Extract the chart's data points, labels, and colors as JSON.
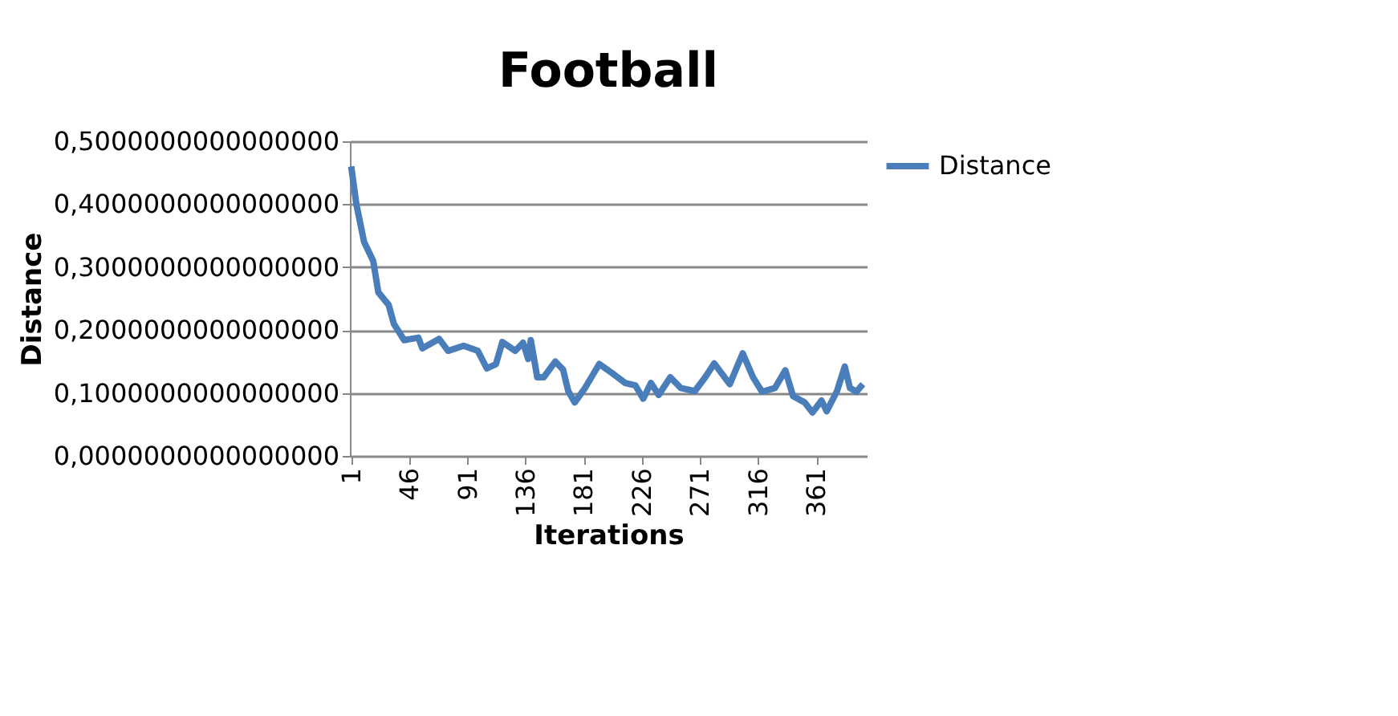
{
  "chart_data": {
    "type": "line",
    "title": "Football",
    "xlabel": "Iterations",
    "ylabel": "Distance",
    "xlim": [
      0,
      400
    ],
    "xticks": [
      1,
      46,
      91,
      136,
      181,
      226,
      271,
      316,
      361
    ],
    "ylim": [
      0,
      0.5
    ],
    "yticks": [
      {
        "value": 0,
        "label": "0,0000000000000000"
      },
      {
        "value": 0.1,
        "label": "0,1000000000000000"
      },
      {
        "value": 0.2,
        "label": "0,2000000000000000"
      },
      {
        "value": 0.3,
        "label": "0,3000000000000000"
      },
      {
        "value": 0.4,
        "label": "0,4000000000000000"
      },
      {
        "value": 0.5,
        "label": "0,5000000000000000"
      }
    ],
    "grid": "y",
    "legend": "right",
    "marker": "none",
    "line_style": "solid",
    "series": [
      {
        "name": "Distance",
        "color": "#4a7ebb",
        "x": [
          1,
          5,
          11,
          18,
          22,
          30,
          34,
          42,
          53,
          56,
          69,
          76,
          88,
          99,
          106,
          113,
          118,
          128,
          134,
          138,
          140,
          145,
          150,
          159,
          165,
          169,
          174,
          182,
          193,
          202,
          213,
          221,
          227,
          233,
          239,
          248,
          256,
          267,
          275,
          282,
          287,
          294,
          304,
          312,
          319,
          329,
          337,
          343,
          352,
          358,
          365,
          369,
          377,
          383,
          387,
          392,
          397
        ],
        "values": [
          0.46,
          0.4,
          0.34,
          0.31,
          0.26,
          0.24,
          0.21,
          0.184,
          0.188,
          0.171,
          0.186,
          0.167,
          0.175,
          0.167,
          0.139,
          0.146,
          0.181,
          0.167,
          0.18,
          0.154,
          0.184,
          0.125,
          0.125,
          0.15,
          0.137,
          0.103,
          0.085,
          0.108,
          0.146,
          0.133,
          0.116,
          0.112,
          0.091,
          0.116,
          0.097,
          0.125,
          0.108,
          0.103,
          0.125,
          0.147,
          0.133,
          0.114,
          0.163,
          0.125,
          0.102,
          0.108,
          0.136,
          0.095,
          0.085,
          0.069,
          0.088,
          0.071,
          0.103,
          0.142,
          0.108,
          0.102,
          0.114
        ]
      }
    ]
  }
}
